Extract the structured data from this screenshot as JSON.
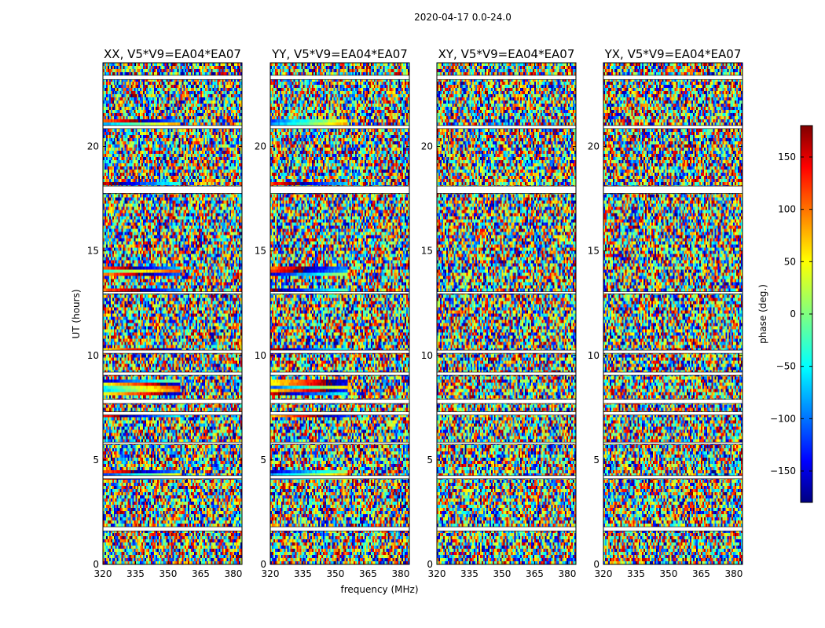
{
  "suptitle": "2020-04-17 0.0-24.0",
  "chart_data": {
    "type": "heatmap",
    "xlabel": "frequency (MHz)",
    "ylabel": "UT (hours)",
    "xlim": [
      320,
      384
    ],
    "ylim": [
      0,
      24
    ],
    "xticks": [
      320,
      335,
      350,
      365,
      380
    ],
    "yticks": [
      0,
      5,
      10,
      15,
      20
    ],
    "colorbar": {
      "label": "phase (deg.)",
      "range": [
        -180,
        180
      ],
      "ticks": [
        150,
        100,
        50,
        0,
        -50,
        -100,
        -150
      ],
      "tick_labels": [
        "150",
        "100",
        "50",
        "0",
        "−50",
        "−100",
        "−150"
      ],
      "colormap": [
        "#000080",
        "#0000ff",
        "#00ffff",
        "#80ff80",
        "#ffff00",
        "#ff0000",
        "#800000"
      ]
    },
    "panels": [
      {
        "title": "XX, V5*V9=EA04*EA07",
        "polarization": "XX"
      },
      {
        "title": "YY, V5*V9=EA04*EA07",
        "polarization": "YY"
      },
      {
        "title": "XY, V5*V9=EA04*EA07",
        "polarization": "XY"
      },
      {
        "title": "YX, V5*V9=EA04*EA07",
        "polarization": "YX"
      }
    ],
    "flagged_time_ranges_hours": [
      [
        1.6,
        1.8
      ],
      [
        4.1,
        4.25
      ],
      [
        5.75,
        5.85
      ],
      [
        7.15,
        7.3
      ],
      [
        7.7,
        7.9
      ],
      [
        9.05,
        9.2
      ],
      [
        10.1,
        10.25
      ],
      [
        12.95,
        13.05
      ],
      [
        17.75,
        18.1
      ],
      [
        20.85,
        21.0
      ],
      [
        23.2,
        23.4
      ]
    ],
    "coherent_phase_bands_hours": [
      [
        4.1,
        4.5
      ],
      [
        7.0,
        7.2
      ],
      [
        8.1,
        8.9
      ],
      [
        10.25,
        10.4
      ],
      [
        13.0,
        13.2
      ],
      [
        13.85,
        14.2
      ],
      [
        18.1,
        18.35
      ],
      [
        20.85,
        21.25
      ]
    ]
  }
}
